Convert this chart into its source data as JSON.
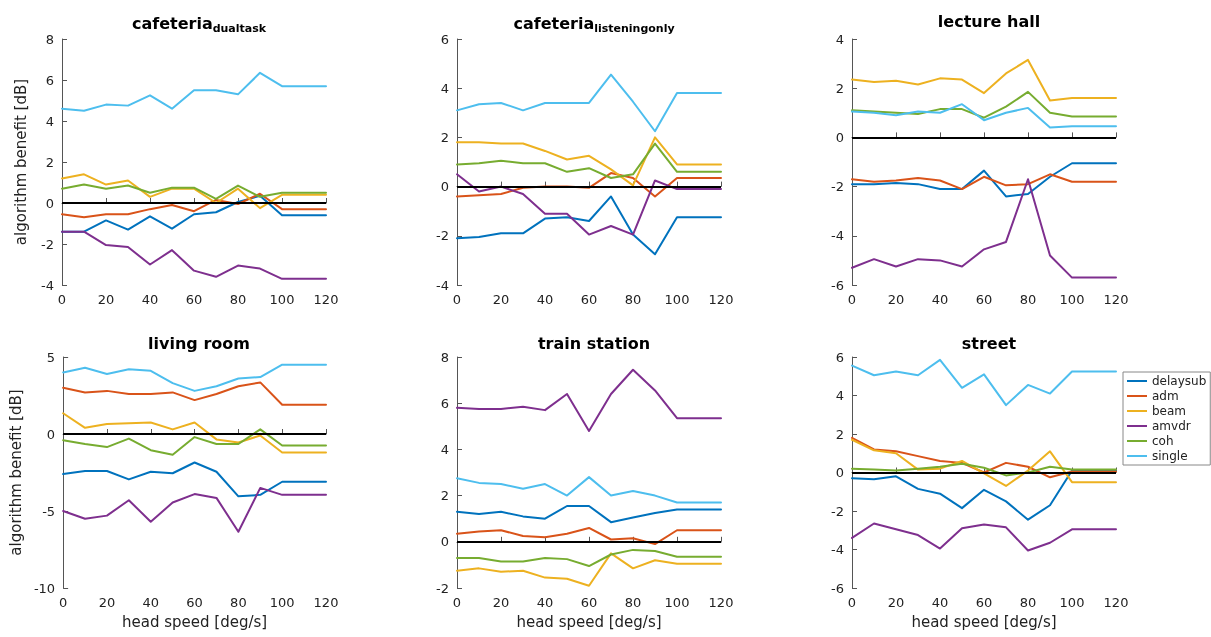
{
  "chart_data": [
    {
      "type": "line",
      "title": "cafeteria$_{dualtask}$",
      "ylabel": "algorithm benefit [dB]",
      "xlim": [
        0,
        120
      ],
      "xticks": [
        0,
        20,
        40,
        60,
        80,
        100,
        120
      ],
      "ylim": [
        -4,
        8
      ],
      "yticks": [
        -4,
        -2,
        0,
        2,
        4,
        6,
        8
      ],
      "marker": "none",
      "line_style": "solid",
      "x": [
        0,
        10,
        20,
        30,
        40,
        50,
        60,
        70,
        80,
        90,
        100,
        120
      ],
      "ref_lines": [
        {
          "axis": "y",
          "value": 0,
          "color": "#000000"
        }
      ],
      "series": [
        {
          "color": "#0072bd",
          "values": [
            -1.4,
            -1.4,
            -0.85,
            -1.3,
            -0.65,
            -1.25,
            -0.55,
            -0.45,
            0.05,
            0.35,
            -0.6,
            -0.6
          ]
        },
        {
          "color": "#d95319",
          "values": [
            -0.55,
            -0.7,
            -0.55,
            -0.55,
            -0.3,
            -0.1,
            -0.4,
            0.15,
            -0.05,
            0.45,
            -0.3,
            -0.3
          ]
        },
        {
          "color": "#edb120",
          "values": [
            1.2,
            1.4,
            0.9,
            1.1,
            0.3,
            0.7,
            0.7,
            0,
            0.7,
            -0.25,
            0.4,
            0.4
          ]
        },
        {
          "color": "#7e2f8e",
          "values": [
            -1.4,
            -1.4,
            -2.05,
            -2.15,
            -3.0,
            -2.3,
            -3.3,
            -3.6,
            -3.05,
            -3.2,
            -3.7,
            -3.7
          ]
        },
        {
          "color": "#77ac30",
          "values": [
            0.7,
            0.9,
            0.7,
            0.85,
            0.5,
            0.75,
            0.75,
            0.2,
            0.85,
            0.3,
            0.5,
            0.5
          ]
        },
        {
          "color": "#4dbeee",
          "values": [
            4.6,
            4.5,
            4.8,
            4.75,
            5.25,
            4.6,
            5.5,
            5.5,
            5.3,
            6.35,
            5.7,
            5.7
          ]
        }
      ]
    },
    {
      "type": "line",
      "title": "cafeteria$_{listeningonly}$",
      "xlim": [
        0,
        120
      ],
      "xticks": [
        0,
        20,
        40,
        60,
        80,
        100,
        120
      ],
      "ylim": [
        -4,
        6
      ],
      "yticks": [
        -4,
        -2,
        0,
        2,
        4,
        6
      ],
      "marker": "none",
      "line_style": "solid",
      "x": [
        0,
        10,
        20,
        30,
        40,
        50,
        60,
        70,
        80,
        90,
        100,
        120
      ],
      "ref_lines": [
        {
          "axis": "y",
          "value": 0,
          "color": "#000000"
        }
      ],
      "series": [
        {
          "color": "#0072bd",
          "values": [
            -2.1,
            -2.05,
            -1.9,
            -1.9,
            -1.3,
            -1.25,
            -1.4,
            -0.4,
            -1.95,
            -2.75,
            -1.25,
            -1.25
          ]
        },
        {
          "color": "#d95319",
          "values": [
            -0.4,
            -0.35,
            -0.3,
            -0.05,
            0,
            0,
            -0.05,
            0.55,
            0.35,
            -0.4,
            0.35,
            0.35
          ]
        },
        {
          "color": "#edb120",
          "values": [
            1.8,
            1.8,
            1.75,
            1.75,
            1.45,
            1.1,
            1.25,
            0.7,
            0.05,
            2.0,
            0.9,
            0.9
          ]
        },
        {
          "color": "#7e2f8e",
          "values": [
            0.5,
            -0.2,
            0,
            -0.3,
            -1.1,
            -1.1,
            -1.95,
            -1.6,
            -1.95,
            0.25,
            -0.1,
            -0.1
          ]
        },
        {
          "color": "#77ac30",
          "values": [
            0.9,
            0.95,
            1.05,
            0.95,
            0.95,
            0.6,
            0.75,
            0.35,
            0.5,
            1.75,
            0.6,
            0.6
          ]
        },
        {
          "color": "#4dbeee",
          "values": [
            3.1,
            3.35,
            3.4,
            3.1,
            3.4,
            3.4,
            3.4,
            4.55,
            3.45,
            2.25,
            3.8,
            3.8
          ]
        }
      ]
    },
    {
      "type": "line",
      "title": "lecture hall",
      "xlim": [
        0,
        120
      ],
      "xticks": [
        0,
        20,
        40,
        60,
        80,
        100,
        120
      ],
      "ylim": [
        -6,
        4
      ],
      "yticks": [
        -6,
        -4,
        -2,
        0,
        2,
        4
      ],
      "marker": "none",
      "line_style": "solid",
      "x": [
        0,
        10,
        20,
        30,
        40,
        50,
        60,
        70,
        80,
        90,
        100,
        120
      ],
      "ref_lines": [
        {
          "axis": "y",
          "value": 0,
          "color": "#000000"
        }
      ],
      "series": [
        {
          "color": "#0072bd",
          "values": [
            -1.9,
            -1.9,
            -1.85,
            -1.9,
            -2.1,
            -2.1,
            -1.35,
            -2.4,
            -2.3,
            -1.6,
            -1.05,
            -1.05
          ]
        },
        {
          "color": "#d95319",
          "values": [
            -1.7,
            -1.8,
            -1.75,
            -1.65,
            -1.75,
            -2.1,
            -1.6,
            -1.95,
            -1.9,
            -1.5,
            -1.8,
            -1.8
          ]
        },
        {
          "color": "#edb120",
          "values": [
            2.35,
            2.25,
            2.3,
            2.15,
            2.4,
            2.35,
            1.8,
            2.6,
            3.15,
            1.5,
            1.6,
            1.6
          ]
        },
        {
          "color": "#7e2f8e",
          "values": [
            -5.3,
            -4.95,
            -5.25,
            -4.95,
            -5.0,
            -5.25,
            -4.55,
            -4.25,
            -1.7,
            -4.8,
            -5.7,
            -5.7
          ]
        },
        {
          "color": "#77ac30",
          "values": [
            1.1,
            1.05,
            1.0,
            0.95,
            1.15,
            1.15,
            0.8,
            1.25,
            1.85,
            1.0,
            0.85,
            0.85
          ]
        },
        {
          "color": "#4dbeee",
          "values": [
            1.05,
            1.0,
            0.9,
            1.05,
            1.0,
            1.35,
            0.7,
            1.0,
            1.2,
            0.4,
            0.45,
            0.45
          ]
        }
      ]
    },
    {
      "type": "line",
      "title": "living room",
      "xlabel": "head speed [deg/s]",
      "ylabel": "algorithm benefit [dB]",
      "xlim": [
        0,
        120
      ],
      "xticks": [
        0,
        20,
        40,
        60,
        80,
        100,
        120
      ],
      "ylim": [
        -10,
        5
      ],
      "yticks": [
        -10,
        -5,
        0,
        5
      ],
      "marker": "none",
      "line_style": "solid",
      "x": [
        0,
        10,
        20,
        30,
        40,
        50,
        60,
        70,
        80,
        90,
        100,
        120
      ],
      "ref_lines": [
        {
          "axis": "y",
          "value": 0,
          "color": "#000000"
        }
      ],
      "series": [
        {
          "color": "#0072bd",
          "values": [
            -2.6,
            -2.4,
            -2.4,
            -2.95,
            -2.45,
            -2.55,
            -1.85,
            -2.45,
            -4.05,
            -3.95,
            -3.1,
            -3.1
          ]
        },
        {
          "color": "#d95319",
          "values": [
            3.0,
            2.7,
            2.8,
            2.6,
            2.6,
            2.7,
            2.2,
            2.6,
            3.1,
            3.35,
            1.9,
            1.9
          ]
        },
        {
          "color": "#edb120",
          "values": [
            1.35,
            0.4,
            0.65,
            0.7,
            0.75,
            0.3,
            0.75,
            -0.35,
            -0.55,
            -0.1,
            -1.2,
            -1.2
          ]
        },
        {
          "color": "#7e2f8e",
          "values": [
            -5.0,
            -5.5,
            -5.3,
            -4.3,
            -5.7,
            -4.45,
            -3.9,
            -4.15,
            -6.35,
            -3.5,
            -3.95,
            -3.95
          ]
        },
        {
          "color": "#77ac30",
          "values": [
            -0.4,
            -0.65,
            -0.85,
            -0.3,
            -1.05,
            -1.35,
            -0.2,
            -0.65,
            -0.65,
            0.3,
            -0.75,
            -0.75
          ]
        },
        {
          "color": "#4dbeee",
          "values": [
            4.0,
            4.3,
            3.9,
            4.2,
            4.1,
            3.3,
            2.8,
            3.1,
            3.6,
            3.7,
            4.5,
            4.5
          ]
        }
      ]
    },
    {
      "type": "line",
      "title": "train station",
      "xlabel": "head speed [deg/s]",
      "xlim": [
        0,
        120
      ],
      "xticks": [
        0,
        20,
        40,
        60,
        80,
        100,
        120
      ],
      "ylim": [
        -2,
        8
      ],
      "yticks": [
        -2,
        0,
        2,
        4,
        6,
        8
      ],
      "marker": "none",
      "line_style": "solid",
      "x": [
        0,
        10,
        20,
        30,
        40,
        50,
        60,
        70,
        80,
        90,
        100,
        120
      ],
      "ref_lines": [
        {
          "axis": "y",
          "value": 0,
          "color": "#000000"
        }
      ],
      "series": [
        {
          "color": "#0072bd",
          "values": [
            1.3,
            1.2,
            1.3,
            1.1,
            1.0,
            1.55,
            1.55,
            0.85,
            1.05,
            1.25,
            1.4,
            1.4
          ]
        },
        {
          "color": "#d95319",
          "values": [
            0.35,
            0.45,
            0.5,
            0.25,
            0.2,
            0.35,
            0.6,
            0.1,
            0.15,
            -0.1,
            0.5,
            0.5
          ]
        },
        {
          "color": "#edb120",
          "values": [
            -1.25,
            -1.15,
            -1.3,
            -1.25,
            -1.55,
            -1.6,
            -1.9,
            -0.5,
            -1.15,
            -0.8,
            -0.95,
            -0.95
          ]
        },
        {
          "color": "#7e2f8e",
          "values": [
            5.8,
            5.75,
            5.75,
            5.85,
            5.7,
            6.4,
            4.8,
            6.4,
            7.45,
            6.55,
            5.35,
            5.35
          ]
        },
        {
          "color": "#77ac30",
          "values": [
            -0.7,
            -0.7,
            -0.85,
            -0.85,
            -0.7,
            -0.75,
            -1.05,
            -0.55,
            -0.35,
            -0.4,
            -0.65,
            -0.65
          ]
        },
        {
          "color": "#4dbeee",
          "values": [
            2.75,
            2.55,
            2.5,
            2.3,
            2.5,
            2.0,
            2.8,
            2.0,
            2.2,
            2.0,
            1.7,
            1.7
          ]
        }
      ]
    },
    {
      "type": "line",
      "title": "street",
      "xlabel": "head speed [deg/s]",
      "legend": "right",
      "xlim": [
        0,
        120
      ],
      "xticks": [
        0,
        20,
        40,
        60,
        80,
        100,
        120
      ],
      "ylim": [
        -6,
        6
      ],
      "yticks": [
        -6,
        -4,
        -2,
        0,
        2,
        4,
        6
      ],
      "marker": "none",
      "line_style": "solid",
      "x": [
        0,
        10,
        20,
        30,
        40,
        50,
        60,
        70,
        80,
        90,
        100,
        120
      ],
      "ref_lines": [
        {
          "axis": "y",
          "value": 0,
          "color": "#000000"
        }
      ],
      "series": [
        {
          "name": "delaysub",
          "color": "#0072bd",
          "values": [
            -0.3,
            -0.35,
            -0.2,
            -0.85,
            -1.1,
            -1.85,
            -0.9,
            -1.5,
            -2.45,
            -1.7,
            0.1,
            0.1
          ]
        },
        {
          "name": "adm",
          "color": "#d95319",
          "values": [
            1.8,
            1.2,
            1.1,
            0.85,
            0.6,
            0.5,
            0,
            0.5,
            0.3,
            -0.25,
            0.05,
            0.05
          ]
        },
        {
          "name": "beam",
          "color": "#edb120",
          "values": [
            1.7,
            1.15,
            1.0,
            0.15,
            0.2,
            0.6,
            -0.05,
            -0.7,
            0.1,
            1.1,
            -0.5,
            -0.5
          ]
        },
        {
          "name": "amvdr",
          "color": "#7e2f8e",
          "values": [
            -3.4,
            -2.65,
            -2.95,
            -3.25,
            -3.95,
            -2.9,
            -2.7,
            -2.85,
            -4.05,
            -3.65,
            -2.95,
            -2.95
          ]
        },
        {
          "name": "coh",
          "color": "#77ac30",
          "values": [
            0.2,
            0.15,
            0.1,
            0.2,
            0.3,
            0.45,
            0.25,
            -0.15,
            0,
            0.3,
            0.15,
            0.15
          ]
        },
        {
          "name": "single",
          "color": "#4dbeee",
          "values": [
            5.55,
            5.05,
            5.25,
            5.05,
            5.85,
            4.4,
            5.1,
            3.5,
            4.55,
            4.1,
            5.25,
            5.25
          ]
        }
      ]
    }
  ]
}
